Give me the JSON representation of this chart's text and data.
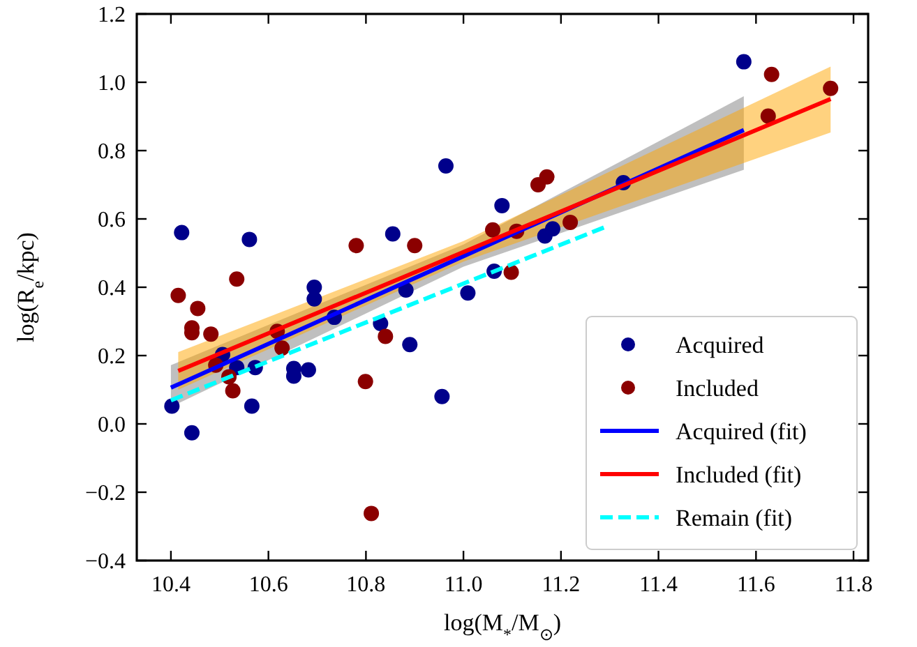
{
  "chart_data": {
    "type": "scatter",
    "xlabel": "log(M$_{*}$/M$_{⊙}$)",
    "ylabel": "log(R$_{e}$/kpc)",
    "xlim": [
      10.33,
      11.83
    ],
    "ylim": [
      -0.4,
      1.2
    ],
    "xticks": [
      10.4,
      10.6,
      10.8,
      {
        "value": 11,
        "label": "11.0"
      },
      11.2,
      11.4,
      11.6,
      11.8
    ],
    "yticks": [
      {
        "value": -0.4,
        "label": "−0.4"
      },
      {
        "value": -0.2,
        "label": "−0.2"
      },
      {
        "value": 0,
        "label": "0.0"
      },
      {
        "value": 0.2,
        "label": "0.2"
      },
      {
        "value": 0.4,
        "label": "0.4"
      },
      {
        "value": 0.6,
        "label": "0.6"
      },
      {
        "value": 0.8,
        "label": "0.8"
      },
      {
        "value": 1.0,
        "label": "1.0"
      },
      {
        "value": 1.2,
        "label": "1.2"
      }
    ],
    "grid": false,
    "legend": "bottom right",
    "series": [
      {
        "name": "Acquired",
        "marker": "circle",
        "color": "#00008b",
        "x": [
          10.402,
          10.422,
          10.443,
          10.506,
          10.535,
          10.561,
          10.566,
          10.573,
          10.652,
          10.652,
          10.682,
          10.694,
          10.694,
          10.735,
          10.83,
          10.855,
          10.882,
          10.89,
          10.964,
          10.956,
          11.009,
          11.063,
          11.079,
          11.167,
          11.183,
          11.328,
          11.575
        ],
        "values": [
          0.052,
          0.56,
          -0.026,
          0.203,
          0.165,
          0.54,
          0.052,
          0.165,
          0.162,
          0.14,
          0.158,
          0.4,
          0.366,
          0.312,
          0.294,
          0.556,
          0.392,
          0.232,
          0.755,
          0.08,
          0.383,
          0.447,
          0.639,
          0.55,
          0.571,
          0.706,
          1.06
        ]
      },
      {
        "name": "Included",
        "marker": "circle",
        "color": "#8b0000",
        "x": [
          10.415,
          10.443,
          10.443,
          10.455,
          10.482,
          10.492,
          10.519,
          10.527,
          10.535,
          10.618,
          10.628,
          10.78,
          10.799,
          10.811,
          10.84,
          10.9,
          11.06,
          11.098,
          11.109,
          11.153,
          11.171,
          11.219,
          11.625,
          11.632,
          11.753
        ],
        "values": [
          0.376,
          0.281,
          0.267,
          0.338,
          0.263,
          0.172,
          0.138,
          0.097,
          0.424,
          0.271,
          0.222,
          0.522,
          0.124,
          -0.262,
          0.256,
          0.522,
          0.568,
          0.444,
          0.564,
          0.7,
          0.723,
          0.59,
          0.901,
          1.023,
          0.982
        ]
      },
      {
        "name": "Acquired (fit)",
        "type": "line",
        "color": "#0000ff",
        "line_style": "solid",
        "x": [
          10.4,
          11.0,
          11.575
        ],
        "values": [
          0.106,
          0.491,
          0.86
        ],
        "lower": [
          0.05,
          0.46,
          0.744
        ],
        "upper": [
          0.172,
          0.525,
          0.959
        ]
      },
      {
        "name": "Included (fit)",
        "type": "line",
        "color": "#ff0000",
        "line_style": "solid",
        "x": [
          10.415,
          11.0,
          11.753
        ],
        "values": [
          0.155,
          0.503,
          0.951
        ],
        "lower": [
          0.1,
          0.475,
          0.853
        ],
        "upper": [
          0.21,
          0.535,
          1.046
        ]
      },
      {
        "name": "Remain (fit)",
        "type": "line",
        "color": "#00ffff",
        "line_style": "dashed",
        "x": [
          10.4,
          11.29
        ],
        "values": [
          0.069,
          0.576
        ]
      }
    ]
  }
}
